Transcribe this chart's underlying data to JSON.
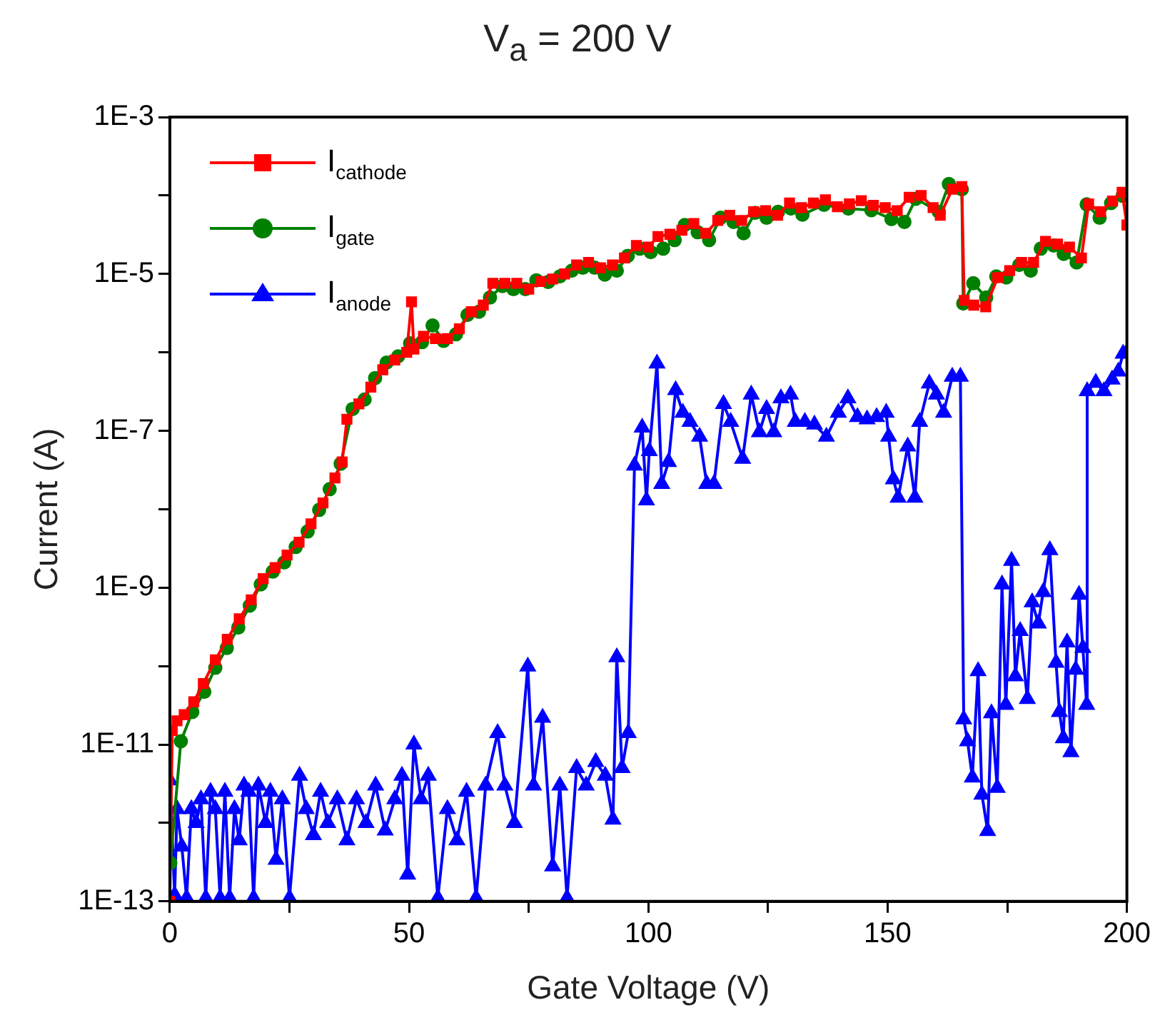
{
  "chart_data": {
    "type": "line",
    "title": "V$_{a}$ = 200 V",
    "xlabel": "Gate Voltage (V)",
    "ylabel": "Current (A)",
    "log": "y",
    "grid": false,
    "legend": "top left",
    "line_style": "solid",
    "xlim": [
      0,
      200
    ],
    "xticks": [
      0,
      {
        "value": 25,
        "label": null
      },
      50,
      {
        "value": 75,
        "label": null
      },
      100,
      {
        "value": 125,
        "label": null
      },
      150,
      {
        "value": 175,
        "label": null
      },
      200
    ],
    "ylim": [
      1e-13,
      0.001
    ],
    "yticks": [
      {
        "value": 1e-13,
        "label": "1E-13"
      },
      {
        "value": 1e-12,
        "label": null
      },
      {
        "value": 1e-11,
        "label": "1E-11"
      },
      {
        "value": 1e-10,
        "label": null
      },
      {
        "value": 1e-09,
        "label": "1E-9"
      },
      {
        "value": 1e-08,
        "label": null
      },
      {
        "value": 1e-07,
        "label": "1E-7"
      },
      {
        "value": 1e-06,
        "label": null
      },
      {
        "value": 1e-05,
        "label": "1E-5"
      },
      {
        "value": 0.0001,
        "label": null
      },
      {
        "value": 0.001,
        "label": "1E-3"
      }
    ],
    "series": [
      {
        "name": "I$_{cathode}$",
        "color": "#ff0000",
        "marker": "square",
        "x": [
          0,
          0.5,
          1.5,
          3,
          5,
          7,
          9.5,
          12,
          14.5,
          17,
          19.5,
          22,
          24.5,
          27,
          29.5,
          32,
          34.5,
          36,
          37,
          39.5,
          42,
          44.5,
          47,
          49.5,
          50.5,
          51,
          53,
          55.5,
          58,
          60.5,
          63,
          65.5,
          67.5,
          70,
          72.5,
          75,
          77.5,
          80,
          82.5,
          85,
          87.5,
          90,
          92.5,
          95,
          97.5,
          100,
          102,
          104.5,
          107,
          109.5,
          112,
          114.5,
          117,
          119.5,
          122,
          124.5,
          127,
          129.5,
          132,
          134.5,
          137,
          139.5,
          142,
          144.5,
          147,
          149.5,
          152,
          154.5,
          157,
          159.5,
          161,
          163.5,
          165.5,
          166,
          168,
          170.5,
          173,
          175.5,
          178,
          180.5,
          183,
          185.5,
          188,
          190.5,
          192,
          194.5,
          197,
          199,
          200
        ],
        "values": [
          1e-13,
          1.5e-11,
          2e-11,
          2.4e-11,
          3.5e-11,
          6e-11,
          1.2e-10,
          2.2e-10,
          4e-10,
          7e-10,
          1.3e-09,
          1.8e-09,
          2.6e-09,
          3.8e-09,
          6.5e-09,
          1.2e-08,
          2.5e-08,
          4e-08,
          1.4e-07,
          2.2e-07,
          3.6e-07,
          6e-07,
          8e-07,
          1e-06,
          4.4e-06,
          1.1e-06,
          1.6e-06,
          1.5e-06,
          1.5e-06,
          2e-06,
          3.3e-06,
          4e-06,
          7.6e-06,
          7.6e-06,
          7.6e-06,
          6.4e-06,
          8e-06,
          8.6e-06,
          1e-05,
          1.3e-05,
          1.4e-05,
          1.2e-05,
          1.3e-05,
          1.6e-05,
          2.3e-05,
          2.2e-05,
          3e-05,
          3.2e-05,
          3.6e-05,
          4.4e-05,
          3.3e-05,
          4.8e-05,
          5.6e-05,
          4.8e-05,
          6.2e-05,
          6.4e-05,
          5.6e-05,
          8e-05,
          7e-05,
          8e-05,
          8.8e-05,
          7.2e-05,
          7.8e-05,
          8.6e-05,
          7.5e-05,
          7e-05,
          6.4e-05,
          9.5e-05,
          0.0001,
          7e-05,
          5.6e-05,
          0.00012,
          0.00013,
          4.6e-06,
          4e-06,
          3.8e-06,
          9e-06,
          1.1e-05,
          1.4e-05,
          1.4e-05,
          2.6e-05,
          2.4e-05,
          2.2e-05,
          1.6e-05,
          7.8e-05,
          6.2e-05,
          8.5e-05,
          0.00011,
          4.2e-05
        ]
      },
      {
        "name": "I$_{gate}$",
        "color": "#008000",
        "marker": "circle",
        "x": [
          0.1,
          2.3,
          4.7,
          7.2,
          9.5,
          11.9,
          14.3,
          16.7,
          19,
          21.5,
          23.9,
          26.3,
          28.8,
          31.2,
          33.4,
          35.7,
          38.2,
          40.7,
          42.9,
          45.3,
          47.7,
          50.2,
          52.7,
          54.9,
          57.2,
          59.8,
          62.2,
          64.6,
          66.9,
          69.5,
          71.8,
          74.3,
          76.6,
          79.1,
          81.5,
          84,
          86.3,
          88.8,
          90.9,
          93.4,
          95.7,
          98.2,
          100.5,
          103.1,
          105.5,
          107.6,
          110.3,
          112.7,
          115.1,
          117.8,
          119.9,
          122.3,
          124.7,
          127.1,
          129.8,
          132.2,
          136.7,
          141.8,
          146.6,
          150.8,
          153.5,
          155.9,
          160.7,
          162.8,
          165.5,
          165.8,
          167.9,
          170.6,
          172.7,
          174.8,
          177.5,
          179.9,
          182,
          184.7,
          186.8,
          189.5,
          191.6,
          194.3,
          196.7,
          199.1
        ],
        "values": [
          3.1e-13,
          1.1e-11,
          2.6e-11,
          4.7e-11,
          9.5e-11,
          1.7e-10,
          3.1e-10,
          5.9e-10,
          1.1e-09,
          1.6e-09,
          2.1e-09,
          3.3e-09,
          5.2e-09,
          9.8e-09,
          1.8e-08,
          3.8e-08,
          1.9e-07,
          2.5e-07,
          4.7e-07,
          7.4e-07,
          8.9e-07,
          1.3e-06,
          1.35e-06,
          2.2e-06,
          1.4e-06,
          1.7e-06,
          3e-06,
          3.3e-06,
          5e-06,
          7e-06,
          6.4e-06,
          6.4e-06,
          8.3e-06,
          7.9e-06,
          9.3e-06,
          1.1e-05,
          1.2e-05,
          1.2e-05,
          9.8e-06,
          1.1e-05,
          1.7e-05,
          2.1e-05,
          1.9e-05,
          2.1e-05,
          2.7e-05,
          4.2e-05,
          3.4e-05,
          2.7e-05,
          5.2e-05,
          4.6e-05,
          3.3e-05,
          6e-05,
          5.2e-05,
          6.2e-05,
          6.8e-05,
          5.7e-05,
          7.6e-05,
          6.8e-05,
          6.5e-05,
          5e-05,
          4.6e-05,
          9.1e-05,
          6.2e-05,
          0.00014,
          0.00012,
          4.2e-06,
          7.6e-06,
          5e-06,
          9.3e-06,
          9e-06,
          1.3e-05,
          1.1e-05,
          2.1e-05,
          2.3e-05,
          1.8e-05,
          1.4e-05,
          7.7e-05,
          5.2e-05,
          8e-05,
          9.9e-05
        ]
      },
      {
        "name": "I$_{anode}$",
        "color": "#0000ff",
        "marker": "triangle",
        "x": [
          0,
          1,
          1.5,
          2.5,
          3.5,
          4.5,
          5.5,
          6.5,
          7.5,
          8.5,
          9.5,
          10.5,
          11.5,
          12.5,
          13.5,
          14.5,
          15.5,
          16.5,
          17.5,
          18.5,
          20,
          21,
          22.2,
          23.5,
          25,
          27.1,
          28.5,
          30,
          31.5,
          33,
          35,
          37,
          39,
          41,
          43,
          45,
          47,
          48.5,
          49.7,
          51,
          52.5,
          54,
          56,
          58,
          60,
          62,
          64,
          66,
          68.5,
          70,
          72,
          74.8,
          76,
          77.9,
          80,
          81.5,
          83,
          85,
          87,
          89,
          91,
          92.6,
          93.4,
          94.5,
          95.8,
          97.1,
          98.7,
          99.6,
          100.2,
          101.8,
          102.8,
          104.2,
          105.7,
          107.2,
          108.7,
          110.7,
          112.2,
          113.7,
          115.7,
          117.2,
          119.7,
          121.5,
          123.2,
          124.7,
          126.2,
          127.7,
          129.7,
          130.7,
          132.7,
          134.7,
          137.2,
          139.7,
          141.7,
          143.7,
          145.7,
          147.7,
          149.7,
          150.2,
          151.2,
          152.2,
          154.2,
          155.7,
          156.7,
          158.7,
          160.2,
          161.7,
          163.5,
          165.2,
          165.9,
          166.7,
          167.7,
          168.9,
          169.7,
          170.9,
          171.7,
          172.9,
          173.9,
          174.7,
          175.9,
          176.7,
          177.7,
          179.2,
          180.2,
          181.5,
          182.5,
          183.9,
          185.2,
          185.9,
          186.7,
          187.5,
          188.3,
          189.3,
          190,
          190.8,
          191.6,
          191.7,
          193.5,
          195.2,
          196.9,
          198.2,
          199.2,
          200
        ],
        "values": [
          3.5e-12,
          1.2e-13,
          1.5e-12,
          5e-13,
          1.1e-13,
          1.5e-12,
          1e-12,
          2e-12,
          1.1e-13,
          2.5e-12,
          1.5e-12,
          1.1e-13,
          2.5e-12,
          1.1e-13,
          1.5e-12,
          6e-13,
          3e-12,
          2.5e-12,
          1.1e-13,
          3e-12,
          1e-12,
          2.5e-12,
          3.4e-13,
          2e-12,
          1.1e-13,
          4e-12,
          1.5e-12,
          7e-13,
          2.5e-12,
          1e-12,
          2e-12,
          6e-13,
          2e-12,
          1e-12,
          3e-12,
          8e-13,
          2e-12,
          4e-12,
          2.2e-13,
          1e-11,
          2e-12,
          4e-12,
          1.1e-13,
          1.5e-12,
          6e-13,
          2.5e-12,
          1.1e-13,
          3e-12,
          1.4e-11,
          3e-12,
          1e-12,
          9.9e-11,
          3e-12,
          2.2e-11,
          2.8e-13,
          3e-12,
          1.1e-13,
          5e-12,
          3e-12,
          6e-12,
          4e-12,
          1.1e-12,
          1.3e-10,
          5e-12,
          1.4e-11,
          3.6e-08,
          1.1e-07,
          1.3e-08,
          5.5e-08,
          7.2e-07,
          2.1e-08,
          4e-08,
          3.3e-07,
          1.7e-07,
          1.3e-07,
          8.4e-08,
          2.1e-08,
          2.1e-08,
          2.2e-07,
          1.3e-07,
          4.4e-08,
          2.9e-07,
          9.6e-08,
          1.9e-07,
          9.6e-08,
          2.6e-07,
          2.9e-07,
          1.3e-07,
          1.3e-07,
          1.2e-07,
          8.4e-08,
          1.7e-07,
          2.6e-07,
          1.5e-07,
          1.4e-07,
          1.5e-07,
          1.7e-07,
          8.4e-08,
          2.4e-08,
          1.4e-08,
          6.3e-08,
          1.4e-08,
          1.3e-07,
          4e-07,
          2.9e-07,
          1.7e-07,
          4.9e-07,
          4.9e-07,
          2.1e-11,
          1.1e-11,
          3.8e-12,
          8.6e-11,
          2.3e-12,
          7.9e-13,
          2.5e-11,
          2.8e-12,
          1.1e-09,
          3.2e-11,
          2.2e-09,
          7.4e-11,
          2.8e-10,
          3.8e-11,
          6.5e-10,
          3.5e-10,
          8.8e-10,
          3e-09,
          1.1e-10,
          2.6e-11,
          1.2e-11,
          2e-10,
          8e-12,
          9e-11,
          8.1e-10,
          1.7e-10,
          3.2e-11,
          3.2e-07,
          4.1e-07,
          3.2e-07,
          4.5e-07,
          5.7e-07,
          9.6e-07,
          1e-06
        ]
      }
    ]
  }
}
